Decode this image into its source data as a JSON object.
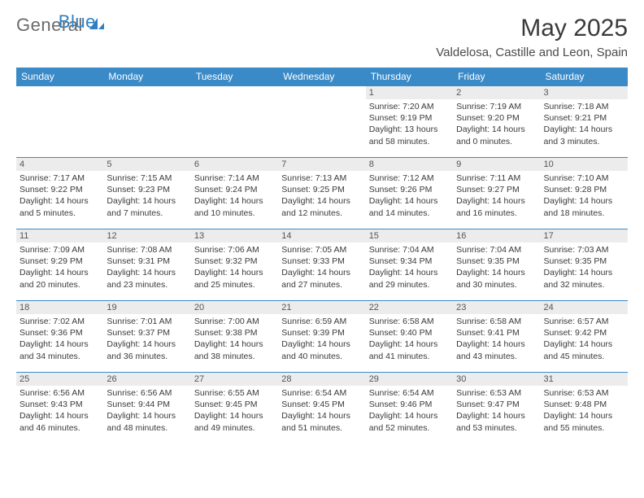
{
  "logo": {
    "text1": "General",
    "text2": "Blue"
  },
  "title": "May 2025",
  "location": "Valdelosa, Castille and Leon, Spain",
  "header_bg": "#3a8ac8",
  "grid_border": "#3a8ac8",
  "daynum_bg": "#ececec",
  "days": [
    "Sunday",
    "Monday",
    "Tuesday",
    "Wednesday",
    "Thursday",
    "Friday",
    "Saturday"
  ],
  "weeks": [
    [
      {
        "n": "",
        "sr": "",
        "ss": "",
        "dl": ""
      },
      {
        "n": "",
        "sr": "",
        "ss": "",
        "dl": ""
      },
      {
        "n": "",
        "sr": "",
        "ss": "",
        "dl": ""
      },
      {
        "n": "",
        "sr": "",
        "ss": "",
        "dl": ""
      },
      {
        "n": "1",
        "sr": "7:20 AM",
        "ss": "9:19 PM",
        "dl": "13 hours and 58 minutes."
      },
      {
        "n": "2",
        "sr": "7:19 AM",
        "ss": "9:20 PM",
        "dl": "14 hours and 0 minutes."
      },
      {
        "n": "3",
        "sr": "7:18 AM",
        "ss": "9:21 PM",
        "dl": "14 hours and 3 minutes."
      }
    ],
    [
      {
        "n": "4",
        "sr": "7:17 AM",
        "ss": "9:22 PM",
        "dl": "14 hours and 5 minutes."
      },
      {
        "n": "5",
        "sr": "7:15 AM",
        "ss": "9:23 PM",
        "dl": "14 hours and 7 minutes."
      },
      {
        "n": "6",
        "sr": "7:14 AM",
        "ss": "9:24 PM",
        "dl": "14 hours and 10 minutes."
      },
      {
        "n": "7",
        "sr": "7:13 AM",
        "ss": "9:25 PM",
        "dl": "14 hours and 12 minutes."
      },
      {
        "n": "8",
        "sr": "7:12 AM",
        "ss": "9:26 PM",
        "dl": "14 hours and 14 minutes."
      },
      {
        "n": "9",
        "sr": "7:11 AM",
        "ss": "9:27 PM",
        "dl": "14 hours and 16 minutes."
      },
      {
        "n": "10",
        "sr": "7:10 AM",
        "ss": "9:28 PM",
        "dl": "14 hours and 18 minutes."
      }
    ],
    [
      {
        "n": "11",
        "sr": "7:09 AM",
        "ss": "9:29 PM",
        "dl": "14 hours and 20 minutes."
      },
      {
        "n": "12",
        "sr": "7:08 AM",
        "ss": "9:31 PM",
        "dl": "14 hours and 23 minutes."
      },
      {
        "n": "13",
        "sr": "7:06 AM",
        "ss": "9:32 PM",
        "dl": "14 hours and 25 minutes."
      },
      {
        "n": "14",
        "sr": "7:05 AM",
        "ss": "9:33 PM",
        "dl": "14 hours and 27 minutes."
      },
      {
        "n": "15",
        "sr": "7:04 AM",
        "ss": "9:34 PM",
        "dl": "14 hours and 29 minutes."
      },
      {
        "n": "16",
        "sr": "7:04 AM",
        "ss": "9:35 PM",
        "dl": "14 hours and 30 minutes."
      },
      {
        "n": "17",
        "sr": "7:03 AM",
        "ss": "9:35 PM",
        "dl": "14 hours and 32 minutes."
      }
    ],
    [
      {
        "n": "18",
        "sr": "7:02 AM",
        "ss": "9:36 PM",
        "dl": "14 hours and 34 minutes."
      },
      {
        "n": "19",
        "sr": "7:01 AM",
        "ss": "9:37 PM",
        "dl": "14 hours and 36 minutes."
      },
      {
        "n": "20",
        "sr": "7:00 AM",
        "ss": "9:38 PM",
        "dl": "14 hours and 38 minutes."
      },
      {
        "n": "21",
        "sr": "6:59 AM",
        "ss": "9:39 PM",
        "dl": "14 hours and 40 minutes."
      },
      {
        "n": "22",
        "sr": "6:58 AM",
        "ss": "9:40 PM",
        "dl": "14 hours and 41 minutes."
      },
      {
        "n": "23",
        "sr": "6:58 AM",
        "ss": "9:41 PM",
        "dl": "14 hours and 43 minutes."
      },
      {
        "n": "24",
        "sr": "6:57 AM",
        "ss": "9:42 PM",
        "dl": "14 hours and 45 minutes."
      }
    ],
    [
      {
        "n": "25",
        "sr": "6:56 AM",
        "ss": "9:43 PM",
        "dl": "14 hours and 46 minutes."
      },
      {
        "n": "26",
        "sr": "6:56 AM",
        "ss": "9:44 PM",
        "dl": "14 hours and 48 minutes."
      },
      {
        "n": "27",
        "sr": "6:55 AM",
        "ss": "9:45 PM",
        "dl": "14 hours and 49 minutes."
      },
      {
        "n": "28",
        "sr": "6:54 AM",
        "ss": "9:45 PM",
        "dl": "14 hours and 51 minutes."
      },
      {
        "n": "29",
        "sr": "6:54 AM",
        "ss": "9:46 PM",
        "dl": "14 hours and 52 minutes."
      },
      {
        "n": "30",
        "sr": "6:53 AM",
        "ss": "9:47 PM",
        "dl": "14 hours and 53 minutes."
      },
      {
        "n": "31",
        "sr": "6:53 AM",
        "ss": "9:48 PM",
        "dl": "14 hours and 55 minutes."
      }
    ]
  ],
  "labels": {
    "sunrise": "Sunrise: ",
    "sunset": "Sunset: ",
    "daylight": "Daylight: "
  }
}
